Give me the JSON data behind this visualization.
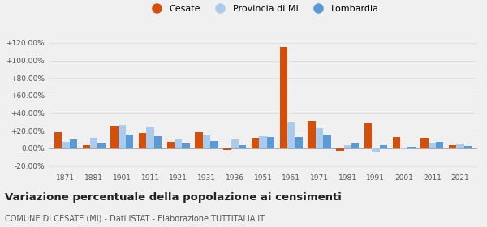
{
  "years": [
    1871,
    1881,
    1901,
    1911,
    1921,
    1931,
    1936,
    1951,
    1961,
    1971,
    1981,
    1991,
    2001,
    2011,
    2021
  ],
  "cesate": [
    18.5,
    4.0,
    24.5,
    17.0,
    7.5,
    18.5,
    -1.5,
    12.0,
    115.0,
    31.5,
    -3.0,
    28.5,
    13.0,
    12.0,
    3.5
  ],
  "provincia": [
    7.0,
    12.0,
    27.0,
    23.5,
    10.5,
    15.0,
    10.5,
    14.0,
    29.0,
    23.0,
    4.0,
    -4.5,
    -1.0,
    5.5,
    4.5
  ],
  "lombardia": [
    10.5,
    5.5,
    15.5,
    13.5,
    5.5,
    8.0,
    3.5,
    13.0,
    13.0,
    15.5,
    5.5,
    3.5,
    2.0,
    7.0,
    2.5
  ],
  "color_cesate": "#d4500a",
  "color_provincia": "#aacbec",
  "color_lombardia": "#5b9bd5",
  "title": "Variazione percentuale della popolazione ai censimenti",
  "subtitle": "COMUNE DI CESATE (MI) - Dati ISTAT - Elaborazione TUTTITALIA.IT",
  "legend_labels": [
    "Cesate",
    "Provincia di MI",
    "Lombardia"
  ],
  "ylim": [
    -25,
    130
  ],
  "yticks": [
    -20,
    0,
    20,
    40,
    60,
    80,
    100,
    120
  ],
  "ytick_labels": [
    "-20.00%",
    "0.00%",
    "+20.00%",
    "+40.00%",
    "+60.00%",
    "+80.00%",
    "+100.00%",
    "+120.00%"
  ],
  "background_color": "#f0f0f0",
  "grid_color": "#dddddd",
  "title_fontsize": 9.5,
  "subtitle_fontsize": 7.0
}
